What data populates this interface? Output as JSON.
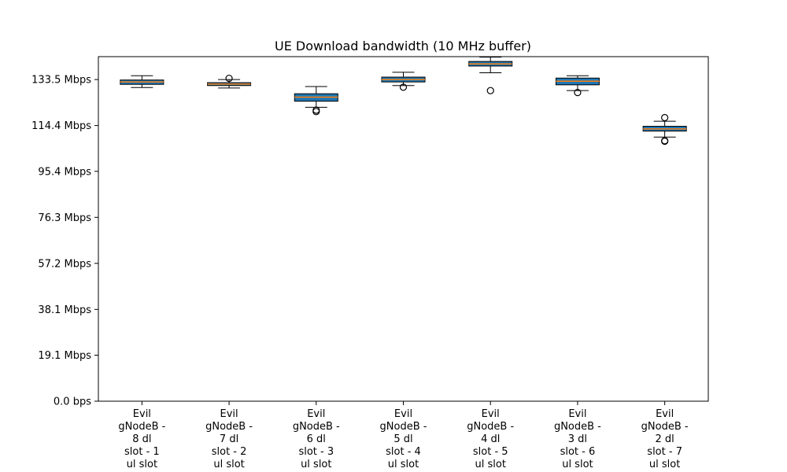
{
  "chart_data": {
    "type": "box",
    "title": "UE Download bandwidth (10 MHz buffer)",
    "xlabel": "",
    "ylabel": "",
    "ylim": [
      0,
      143
    ],
    "y_unit": "Mbps",
    "y_ticks": [
      {
        "value": 0.0,
        "label": "0.0 bps"
      },
      {
        "value": 19.1,
        "label": "19.1 Mbps"
      },
      {
        "value": 38.1,
        "label": "38.1 Mbps"
      },
      {
        "value": 57.2,
        "label": "57.2 Mbps"
      },
      {
        "value": 76.3,
        "label": "76.3 Mbps"
      },
      {
        "value": 95.4,
        "label": "95.4 Mbps"
      },
      {
        "value": 114.4,
        "label": "114.4 Mbps"
      },
      {
        "value": 133.5,
        "label": "133.5 Mbps"
      }
    ],
    "grid": false,
    "categories": [
      [
        "Evil",
        "gNodeB -",
        "8 dl",
        "slot - 1",
        "ul slot"
      ],
      [
        "Evil",
        "gNodeB -",
        "7 dl",
        "slot - 2",
        "ul slot"
      ],
      [
        "Evil",
        "gNodeB -",
        "6 dl",
        "slot - 3",
        "ul slot"
      ],
      [
        "Evil",
        "gNodeB -",
        "5 dl",
        "slot - 4",
        "ul slot"
      ],
      [
        "Evil",
        "gNodeB -",
        "4 dl",
        "slot - 5",
        "ul slot"
      ],
      [
        "Evil",
        "gNodeB -",
        "3 dl",
        "slot - 6",
        "ul slot"
      ],
      [
        "Evil",
        "gNodeB -",
        "2 dl",
        "slot - 7",
        "ul slot"
      ]
    ],
    "boxes": [
      {
        "whisker_low": 130.2,
        "q1": 131.5,
        "median": 132.5,
        "q3": 133.3,
        "whisker_high": 135.1,
        "outliers": []
      },
      {
        "whisker_low": 130.0,
        "q1": 131.0,
        "median": 131.6,
        "q3": 132.2,
        "whisker_high": 133.5,
        "outliers": [
          134.0
        ]
      },
      {
        "whisker_low": 122.0,
        "q1": 124.5,
        "median": 126.2,
        "q3": 127.6,
        "whisker_high": 130.6,
        "outliers": [
          120.8,
          120.2
        ]
      },
      {
        "whisker_low": 131.0,
        "q1": 132.5,
        "median": 133.5,
        "q3": 134.5,
        "whisker_high": 136.5,
        "outliers": [
          130.3
        ]
      },
      {
        "whisker_low": 136.3,
        "q1": 139.1,
        "median": 140.0,
        "q3": 141.0,
        "whisker_high": 142.8,
        "outliers": [
          128.9
        ]
      },
      {
        "whisker_low": 128.9,
        "q1": 131.3,
        "median": 132.8,
        "q3": 134.1,
        "whisker_high": 135.1,
        "outliers": [
          128.1
        ]
      },
      {
        "whisker_low": 109.6,
        "q1": 112.1,
        "median": 113.0,
        "q3": 114.1,
        "whisker_high": 116.2,
        "outliers": [
          117.7,
          108.1,
          107.9
        ]
      }
    ],
    "colors": {
      "box_fill": "#1f77b4",
      "median": "#ff7f0e",
      "box_stroke": "#000000",
      "whisker": "#000000",
      "outlier_stroke": "#000000"
    }
  }
}
